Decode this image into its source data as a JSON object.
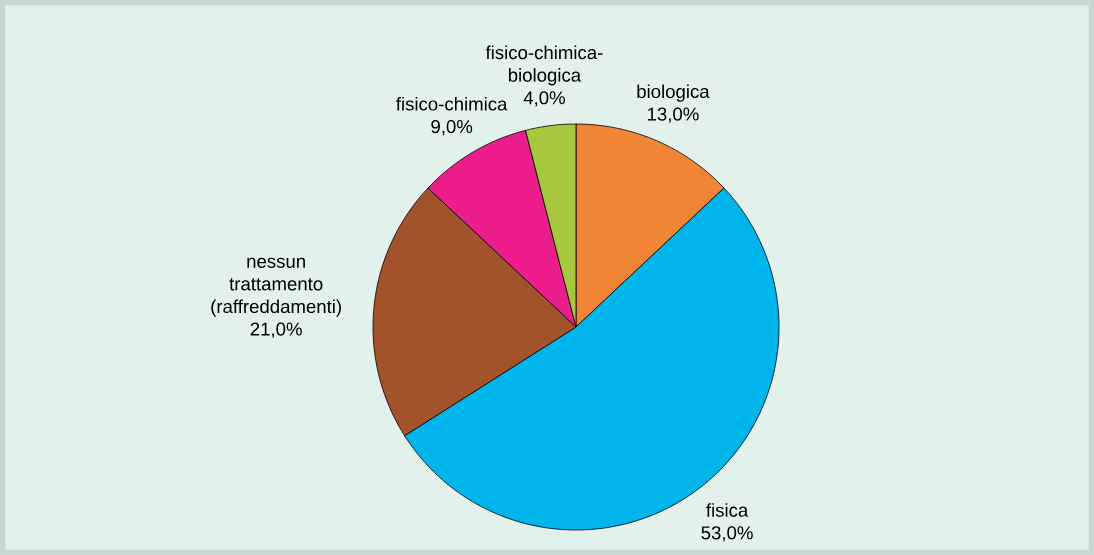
{
  "chart_data": {
    "type": "pie",
    "categories": [
      "biologica",
      "fisica",
      "nessun trattamento (raffreddamenti)",
      "fisico-chimica",
      "fisico-chimica-biologica"
    ],
    "values": [
      13,
      53,
      21,
      9,
      4
    ],
    "colors": [
      "#f08536",
      "#00b5ec",
      "#a3532b",
      "#ec1e8c",
      "#a6c83c"
    ],
    "value_labels": [
      "13,0%",
      "53,0%",
      "21,0%",
      "9,0%",
      "4,0%"
    ]
  }
}
